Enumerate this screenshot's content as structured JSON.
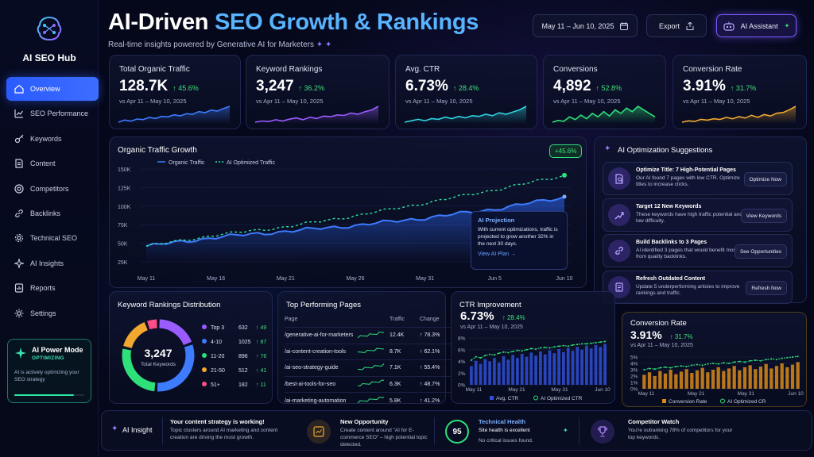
{
  "sidebar": {
    "brand": "AI SEO Hub",
    "items": [
      {
        "label": "Overview",
        "icon": "home-icon",
        "active": true
      },
      {
        "label": "SEO Performance",
        "icon": "chart-icon"
      },
      {
        "label": "Keywords",
        "icon": "key-icon"
      },
      {
        "label": "Content",
        "icon": "document-icon"
      },
      {
        "label": "Competitors",
        "icon": "target-icon"
      },
      {
        "label": "Backlinks",
        "icon": "link-icon"
      },
      {
        "label": "Technical SEO",
        "icon": "gear-icon"
      },
      {
        "label": "AI Insights",
        "icon": "sparkle-icon"
      },
      {
        "label": "Reports",
        "icon": "report-icon"
      },
      {
        "label": "Settings",
        "icon": "settings-icon"
      }
    ],
    "power": {
      "title": "AI Power Mode",
      "status": "OPTIMIZING",
      "desc": "AI is actively optimizing your SEO strategy",
      "progress": 0.85
    }
  },
  "header": {
    "title_main": "AI-Driven ",
    "title_accent": "SEO Growth & Rankings",
    "subtitle": "Real-time insights powered by Generative AI for Marketers",
    "date_range": "May 11 – Jun 10, 2025",
    "export_label": "Export",
    "assistant_label": "AI Assistant"
  },
  "kpis": [
    {
      "label": "Total Organic Traffic",
      "value": "128.7K",
      "change": "↑ 45.6%",
      "vs": "vs Apr 11 – May 10, 2025",
      "color": "#3d7bff",
      "trend": [
        8,
        12,
        10,
        14,
        13,
        17,
        15,
        19,
        18,
        22,
        20,
        24,
        23,
        28,
        26,
        31,
        29,
        34,
        38
      ]
    },
    {
      "label": "Keyword Rankings",
      "value": "3,247",
      "change": "↑ 36.2%",
      "vs": "vs Apr 11 – May 10, 2025",
      "color": "#9a5cff",
      "trend": [
        10,
        12,
        11,
        14,
        12,
        15,
        17,
        14,
        18,
        16,
        20,
        19,
        22,
        21,
        25,
        23,
        27,
        30,
        36
      ]
    },
    {
      "label": "Avg. CTR",
      "value": "6.73%",
      "change": "↑ 28.4%",
      "vs": "vs Apr 11 – May 10, 2025",
      "color": "#2fd3e0",
      "trend": [
        10,
        12,
        14,
        12,
        15,
        14,
        17,
        15,
        18,
        16,
        19,
        18,
        21,
        19,
        23,
        21,
        24,
        27,
        32
      ]
    },
    {
      "label": "Conversions",
      "value": "4,892",
      "change": "↑ 52.8%",
      "vs": "vs Apr 11 – May 10, 2025",
      "color": "#2ee07a",
      "trend": [
        12,
        14,
        13,
        18,
        15,
        20,
        16,
        22,
        18,
        24,
        19,
        26,
        22,
        28,
        24,
        30,
        26,
        22,
        18
      ]
    },
    {
      "label": "Conversion Rate",
      "value": "3.91%",
      "change": "↑ 31.7%",
      "vs": "vs Apr 11 – May 10, 2025",
      "color": "#f0a830",
      "trend": [
        10,
        12,
        11,
        14,
        13,
        15,
        14,
        17,
        15,
        18,
        16,
        20,
        17,
        21,
        19,
        23,
        24,
        28,
        33
      ]
    }
  ],
  "traffic_chart": {
    "title": "Organic Traffic Growth",
    "legend_organic": "Organic Traffic",
    "legend_ai": "AI Optimized Traffic",
    "badge": "+45.6%",
    "projection_title": "AI Projection",
    "projection_text": "With current optimizations, traffic is projected to grow another 32% in the next 30 days.",
    "projection_link": "View AI Plan →"
  },
  "chart_data": [
    {
      "type": "area",
      "title": "Organic Traffic Growth",
      "x": [
        "May 11",
        "May 16",
        "May 21",
        "May 26",
        "May 31",
        "Jun 5",
        "Jun 10"
      ],
      "y_ticks": [
        "150K",
        "125K",
        "100K",
        "75K",
        "50K",
        "25K"
      ],
      "ylim": [
        25000,
        150000
      ],
      "series": [
        {
          "name": "Organic Traffic",
          "values": [
            46000,
            58000,
            66000,
            74000,
            84000,
            96000,
            112000
          ]
        },
        {
          "name": "AI Optimized Traffic",
          "values": [
            46000,
            61000,
            72000,
            87000,
            104000,
            122000,
            141000
          ]
        }
      ]
    },
    {
      "type": "pie",
      "title": "Keyword Rankings Distribution",
      "center_value": "3,247",
      "center_label": "Total Keywords",
      "categories": [
        "Top 3",
        "4-10",
        "11-20",
        "21-50",
        "51+"
      ],
      "values": [
        632,
        1025,
        896,
        512,
        182
      ],
      "changes": [
        "↑ 49",
        "↑ 87",
        "↑ 76",
        "↑ 41",
        "↑ 11"
      ],
      "colors": [
        "#9a5cff",
        "#3d7bff",
        "#2ee07a",
        "#f0a830",
        "#ff4d8a"
      ]
    },
    {
      "type": "bar",
      "title": "CTR Improvement",
      "value": "6.73%",
      "change": "↑ 28.4%",
      "vs": "vs Apr 11 – May 10, 2025",
      "x": [
        "May 11",
        "May 21",
        "May 31",
        "Jun 10"
      ],
      "y_ticks": [
        "8%",
        "6%",
        "4%",
        "2%",
        "0%"
      ],
      "ylim": [
        0,
        8
      ],
      "legend": [
        "Avg. CTR",
        "AI Optimized CTR"
      ],
      "bars": [
        3.2,
        4.1,
        3.6,
        4.4,
        4.0,
        4.6,
        3.8,
        4.9,
        4.3,
        5.1,
        4.6,
        5.3,
        4.8,
        5.5,
        5.0,
        5.7,
        5.2,
        5.9,
        5.4,
        6.1,
        5.6,
        6.3,
        5.8,
        6.5,
        6.0,
        6.7,
        6.2,
        6.8,
        6.5,
        7.0
      ],
      "line": [
        4.2,
        4.8,
        4.6,
        5.0,
        5.2,
        5.1,
        5.4,
        5.6,
        5.5,
        5.7,
        5.9,
        5.8,
        6.0,
        6.2,
        6.1,
        6.3,
        6.4,
        6.3,
        6.5,
        6.6,
        6.7,
        6.6,
        6.8,
        6.9,
        7.0,
        7.0,
        7.1,
        7.2,
        7.3,
        7.4
      ]
    },
    {
      "type": "bar",
      "title": "Conversion Rate",
      "value": "3.91%",
      "change": "↑ 31.7%",
      "vs": "vs Apr 11 – May 10, 2025",
      "x": [
        "May 11",
        "May 21",
        "May 31",
        "Jun 10"
      ],
      "y_ticks": [
        "5%",
        "4%",
        "3%",
        "2%",
        "1%",
        "0%"
      ],
      "ylim": [
        0,
        5
      ],
      "legend": [
        "Conversion Rate",
        "AI Optimized CR"
      ],
      "bars": [
        2.2,
        2.6,
        2.0,
        2.8,
        2.4,
        3.0,
        2.3,
        2.7,
        3.1,
        2.5,
        2.9,
        3.3,
        2.6,
        3.0,
        3.4,
        2.8,
        3.2,
        3.6,
        2.9,
        3.4,
        3.7,
        3.1,
        3.5,
        3.9,
        3.2,
        3.6,
        4.0,
        3.4,
        3.8,
        4.2
      ],
      "line": [
        3.0,
        3.2,
        3.1,
        3.3,
        3.4,
        3.3,
        3.5,
        3.6,
        3.5,
        3.7,
        3.8,
        3.7,
        3.9,
        4.0,
        3.9,
        4.1,
        4.0,
        4.2,
        4.3,
        4.2,
        4.4,
        4.5,
        4.4,
        4.6,
        4.7,
        4.6,
        4.8,
        4.9,
        5.0,
        5.1
      ]
    }
  ],
  "suggestions": {
    "title": "AI Optimization Suggestions",
    "items": [
      {
        "title": "Optimize Title: 7 High-Potential Pages",
        "desc": "Our AI found 7 pages with low CTR. Optimize titles to increase clicks.",
        "button": "Optimize Now",
        "icon": "document-search-icon"
      },
      {
        "title": "Target 12 New Keywords",
        "desc": "These keywords have high traffic potential and low difficulty.",
        "button": "View Keywords",
        "icon": "trend-up-icon"
      },
      {
        "title": "Build Backlinks to 3 Pages",
        "desc": "AI identified 3 pages that would benefit most from quality backlinks.",
        "button": "See Opportunities",
        "icon": "link-icon"
      },
      {
        "title": "Refresh Outdated Content",
        "desc": "Update 5 underperforming articles to improve rankings and traffic.",
        "button": "Refresh Now",
        "icon": "refresh-doc-icon"
      }
    ]
  },
  "top_pages": {
    "title": "Top Performing Pages",
    "headers": [
      "Page",
      "Traffic",
      "Change"
    ],
    "rows": [
      {
        "page": "/generative-ai-for-marketers",
        "traffic": "12.4K",
        "change": "↑ 78.3%"
      },
      {
        "page": "/ai-content-creation-tools",
        "traffic": "8.7K",
        "change": "↑ 62.1%"
      },
      {
        "page": "/ai-seo-strategy-guide",
        "traffic": "7.1K",
        "change": "↑ 55.4%"
      },
      {
        "page": "/best-ai-tools-for-seo",
        "traffic": "6.3K",
        "change": "↑ 48.7%"
      },
      {
        "page": "/ai-marketing-automation",
        "traffic": "5.8K",
        "change": "↑ 41.2%"
      }
    ]
  },
  "footer": {
    "insight_label": "AI Insight",
    "items": [
      {
        "title": "Your content strategy is working!",
        "desc": "Topic clusters around AI marketing and content creation are driving the most growth."
      },
      {
        "title": "New Opportunity",
        "desc": "Create content around \"AI for E-commerce SEO\" – high potential topic detected."
      },
      {
        "title": "Technical Health",
        "desc": "Site health is excellent",
        "desc2": "No critical issues found.",
        "score": "95"
      },
      {
        "title": "Competitor Watch",
        "desc": "You're outranking 78% of competitors for your top keywords."
      }
    ]
  }
}
